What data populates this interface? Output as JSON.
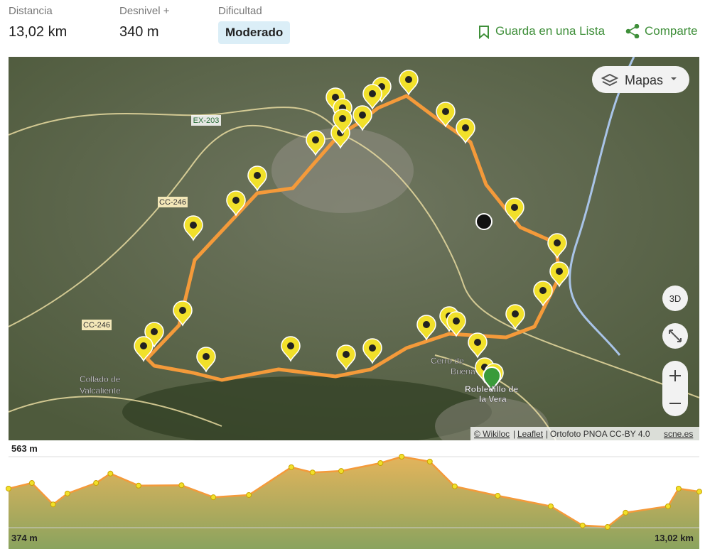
{
  "header": {
    "stats": [
      {
        "label": "Distancia",
        "value": "13,02 km"
      },
      {
        "label": "Desnivel +",
        "value": "340 m"
      },
      {
        "label": "Dificultad",
        "value": "Moderado"
      }
    ],
    "actions": [
      "Guarda en una Lista",
      "Comparte"
    ]
  },
  "map": {
    "layers_button": "Mapas",
    "view_3d": "3D",
    "road_labels": [
      "EX-203",
      "CC-246",
      "CC-246"
    ],
    "place_labels": [
      "Collado de",
      "Valcaliente",
      "Cerro de",
      "Buena",
      "Robledillo de",
      "la Vera"
    ],
    "attribution": [
      "© Wikiloc",
      "Leaflet",
      "Ortofoto PNOA CC-BY 4.0",
      "scne.es"
    ]
  },
  "elevation_profile": {
    "max_label": "563 m",
    "min_label": "374 m",
    "distance_label": "13,02 km",
    "ylim": [
      374,
      563
    ],
    "xlim": [
      0,
      13.02
    ],
    "distance_km": [
      0,
      0.44,
      0.84,
      1.11,
      1.65,
      1.92,
      2.45,
      3.26,
      3.86,
      4.53,
      5.33,
      5.73,
      6.27,
      7.01,
      7.41,
      7.94,
      8.41,
      9.22,
      10.22,
      10.82,
      11.29,
      11.63,
      12.43,
      12.63,
      13.02
    ],
    "elevation_m": [
      478,
      493,
      436,
      465,
      493,
      518,
      486,
      487,
      455,
      461,
      535,
      521,
      525,
      546,
      563,
      550,
      484,
      459,
      431,
      380,
      376,
      414,
      431,
      478,
      470
    ]
  }
}
